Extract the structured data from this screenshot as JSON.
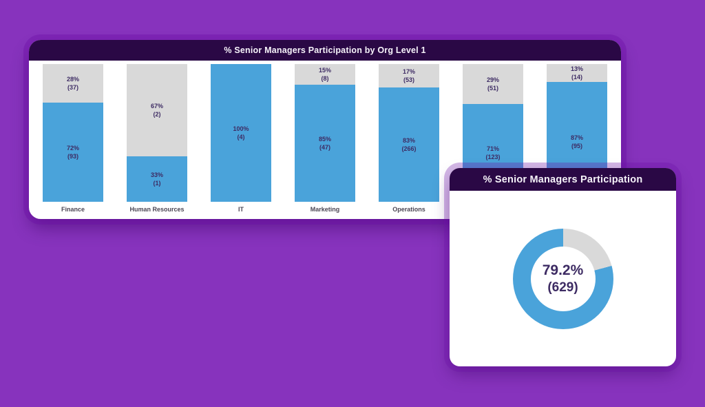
{
  "colors": {
    "background": "#8733bd",
    "card_header": "#2a0845",
    "bar_blue": "#4aa3da",
    "bar_gray": "#d9d9d9",
    "label_dark": "#3d2b63",
    "category_label": "#4a4553"
  },
  "chart_data": [
    {
      "type": "bar",
      "subtype": "stacked-100-percent",
      "title": "% Senior Managers Participation by Org Level 1",
      "legend": "none",
      "axes": "none",
      "grid": false,
      "categories": [
        "Finance",
        "Human Resources",
        "IT",
        "Marketing",
        "Operations",
        "",
        ""
      ],
      "bars": [
        {
          "category": "Finance",
          "segments": [
            {
              "color": "gray",
              "pct": 28,
              "count": 37
            },
            {
              "color": "blue",
              "pct": 72,
              "count": 93
            }
          ]
        },
        {
          "category": "Human Resources",
          "segments": [
            {
              "color": "gray",
              "pct": 67,
              "count": 2
            },
            {
              "color": "blue",
              "pct": 33,
              "count": 1
            }
          ]
        },
        {
          "category": "IT",
          "segments": [
            {
              "color": "blue",
              "pct": 100,
              "count": 4
            }
          ]
        },
        {
          "category": "Marketing",
          "segments": [
            {
              "color": "gray",
              "pct": 15,
              "count": 8
            },
            {
              "color": "blue",
              "pct": 85,
              "count": 47
            }
          ]
        },
        {
          "category": "Operations",
          "segments": [
            {
              "color": "gray",
              "pct": 17,
              "count": 53
            },
            {
              "color": "blue",
              "pct": 83,
              "count": 266
            }
          ]
        },
        {
          "category": "",
          "segments": [
            {
              "color": "gray",
              "pct": 29,
              "count": 51
            },
            {
              "color": "blue",
              "pct": 71,
              "count": 123
            }
          ]
        },
        {
          "category": "",
          "segments": [
            {
              "color": "gray",
              "pct": 13,
              "count": 14
            },
            {
              "color": "blue",
              "pct": 87,
              "count": 95
            }
          ]
        }
      ]
    },
    {
      "type": "donut",
      "title": "% Senior Managers Participation",
      "value_pct": 79.2,
      "value_count": 629,
      "remainder_pct": 20.8,
      "center_text": [
        "79.2%",
        "(629)"
      ],
      "slice_colors": {
        "filled": "#4aa3da",
        "remainder": "#d9d9d9"
      },
      "remainder_start": "12-o-clock-clockwise"
    }
  ]
}
